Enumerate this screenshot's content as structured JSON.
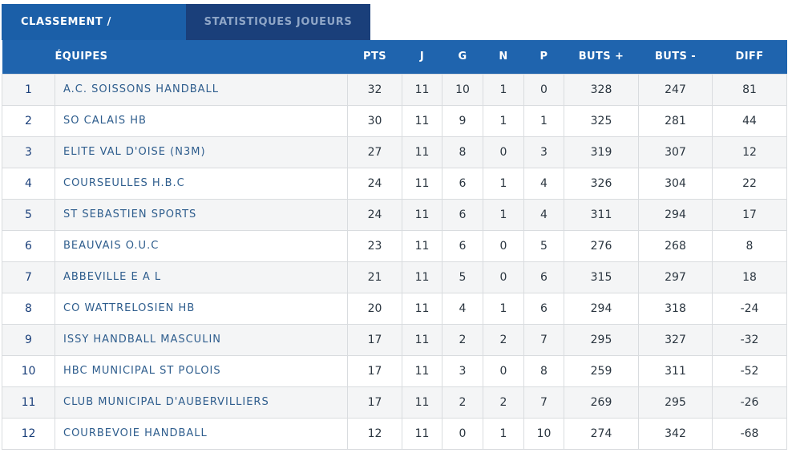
{
  "tabs": [
    {
      "label": "CLASSEMENT / RÉSULTATS",
      "active": true
    },
    {
      "label": "STATISTIQUES JOUEURS",
      "active": false
    }
  ],
  "colors": {
    "tab_active": "#1b5fa8",
    "tab_inactive": "#1a3f7a",
    "header": "#1f64ae",
    "row_alt": "#f4f5f6",
    "border": "#d9dcdf"
  },
  "table": {
    "headers": [
      "",
      "ÉQUIPES",
      "PTS",
      "J",
      "G",
      "N",
      "P",
      "BUTS +",
      "BUTS -",
      "DIFF"
    ],
    "rows": [
      [
        "1",
        "A.C. SOISSONS HANDBALL",
        "32",
        "11",
        "10",
        "1",
        "0",
        "328",
        "247",
        "81"
      ],
      [
        "2",
        "SO CALAIS HB",
        "30",
        "11",
        "9",
        "1",
        "1",
        "325",
        "281",
        "44"
      ],
      [
        "3",
        "ELITE VAL D'OISE (N3M)",
        "27",
        "11",
        "8",
        "0",
        "3",
        "319",
        "307",
        "12"
      ],
      [
        "4",
        "COURSEULLES H.B.C",
        "24",
        "11",
        "6",
        "1",
        "4",
        "326",
        "304",
        "22"
      ],
      [
        "5",
        "ST SEBASTIEN SPORTS",
        "24",
        "11",
        "6",
        "1",
        "4",
        "311",
        "294",
        "17"
      ],
      [
        "6",
        "BEAUVAIS O.U.C",
        "23",
        "11",
        "6",
        "0",
        "5",
        "276",
        "268",
        "8"
      ],
      [
        "7",
        "ABBEVILLE E A L",
        "21",
        "11",
        "5",
        "0",
        "6",
        "315",
        "297",
        "18"
      ],
      [
        "8",
        "CO WATTRELOSIEN HB",
        "20",
        "11",
        "4",
        "1",
        "6",
        "294",
        "318",
        "-24"
      ],
      [
        "9",
        "ISSY HANDBALL MASCULIN",
        "17",
        "11",
        "2",
        "2",
        "7",
        "295",
        "327",
        "-32"
      ],
      [
        "10",
        "HBC MUNICIPAL ST POLOIS",
        "17",
        "11",
        "3",
        "0",
        "8",
        "259",
        "311",
        "-52"
      ],
      [
        "11",
        "CLUB MUNICIPAL D'AUBERVILLIERS",
        "17",
        "11",
        "2",
        "2",
        "7",
        "269",
        "295",
        "-26"
      ],
      [
        "12",
        "COURBEVOIE HANDBALL",
        "12",
        "11",
        "0",
        "1",
        "10",
        "274",
        "342",
        "-68"
      ]
    ]
  }
}
